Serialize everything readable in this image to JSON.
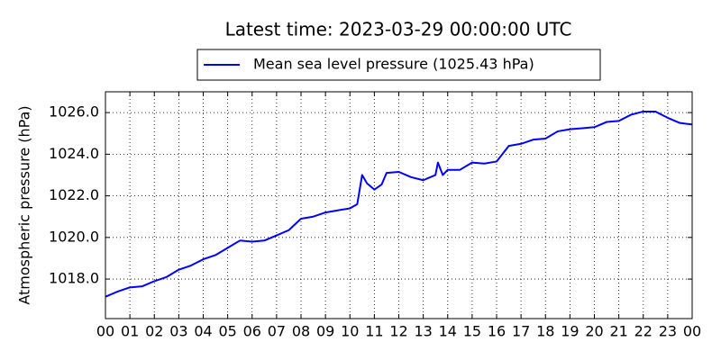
{
  "chart_data": {
    "type": "line",
    "title": "Latest time: 2023-03-29 00:00:00 UTC",
    "ylabel": "Atmospheric pressure (hPa)",
    "x": [
      0,
      0.5,
      1,
      1.5,
      2,
      2.5,
      3,
      3.5,
      4,
      4.5,
      5,
      5.5,
      6,
      6.5,
      7,
      7.5,
      8,
      8.5,
      9,
      9.5,
      10,
      10.3,
      10.5,
      10.7,
      11,
      11.3,
      11.5,
      12,
      12.5,
      13,
      13.5,
      13.6,
      13.8,
      14,
      14.5,
      15,
      15.5,
      16,
      16.5,
      17,
      17.5,
      18,
      18.5,
      19,
      19.5,
      20,
      20.5,
      21,
      21.5,
      22,
      22.5,
      23,
      23.5,
      24
    ],
    "series": [
      {
        "name": "Mean sea level pressure (1025.43 hPa)",
        "color": "#0000ff",
        "values": [
          1017.15,
          1017.4,
          1017.6,
          1017.65,
          1017.9,
          1018.1,
          1018.45,
          1018.65,
          1018.95,
          1019.15,
          1019.5,
          1019.85,
          1019.8,
          1019.85,
          1020.1,
          1020.35,
          1020.9,
          1021.0,
          1021.2,
          1021.3,
          1021.4,
          1021.6,
          1023.0,
          1022.6,
          1022.3,
          1022.55,
          1023.1,
          1023.15,
          1022.9,
          1022.75,
          1023.0,
          1023.6,
          1023.0,
          1023.25,
          1023.25,
          1023.6,
          1023.55,
          1023.65,
          1024.4,
          1024.5,
          1024.7,
          1024.75,
          1025.1,
          1025.2,
          1025.25,
          1025.3,
          1025.55,
          1025.6,
          1025.9,
          1026.05,
          1026.05,
          1025.75,
          1025.5,
          1025.43
        ]
      }
    ],
    "xlim": [
      0,
      24
    ],
    "xticks": [
      {
        "value": 0,
        "label": "00"
      },
      {
        "value": 1,
        "label": "01"
      },
      {
        "value": 2,
        "label": "02"
      },
      {
        "value": 3,
        "label": "03"
      },
      {
        "value": 4,
        "label": "04"
      },
      {
        "value": 5,
        "label": "05"
      },
      {
        "value": 6,
        "label": "06"
      },
      {
        "value": 7,
        "label": "07"
      },
      {
        "value": 8,
        "label": "08"
      },
      {
        "value": 9,
        "label": "09"
      },
      {
        "value": 10,
        "label": "10"
      },
      {
        "value": 11,
        "label": "11"
      },
      {
        "value": 12,
        "label": "12"
      },
      {
        "value": 13,
        "label": "13"
      },
      {
        "value": 14,
        "label": "14"
      },
      {
        "value": 15,
        "label": "15"
      },
      {
        "value": 16,
        "label": "16"
      },
      {
        "value": 17,
        "label": "17"
      },
      {
        "value": 18,
        "label": "18"
      },
      {
        "value": 19,
        "label": "19"
      },
      {
        "value": 20,
        "label": "20"
      },
      {
        "value": 21,
        "label": "21"
      },
      {
        "value": 22,
        "label": "22"
      },
      {
        "value": 23,
        "label": "23"
      },
      {
        "value": 24,
        "label": "00"
      }
    ],
    "ylim": [
      1016.1,
      1027.0
    ],
    "yticks": [
      {
        "value": 1018,
        "label": "1018.0"
      },
      {
        "value": 1020,
        "label": "1020.0"
      },
      {
        "value": 1022,
        "label": "1022.0"
      },
      {
        "value": 1024,
        "label": "1024.0"
      },
      {
        "value": 1026,
        "label": "1026.0"
      }
    ],
    "grid": true,
    "legend": "top"
  }
}
